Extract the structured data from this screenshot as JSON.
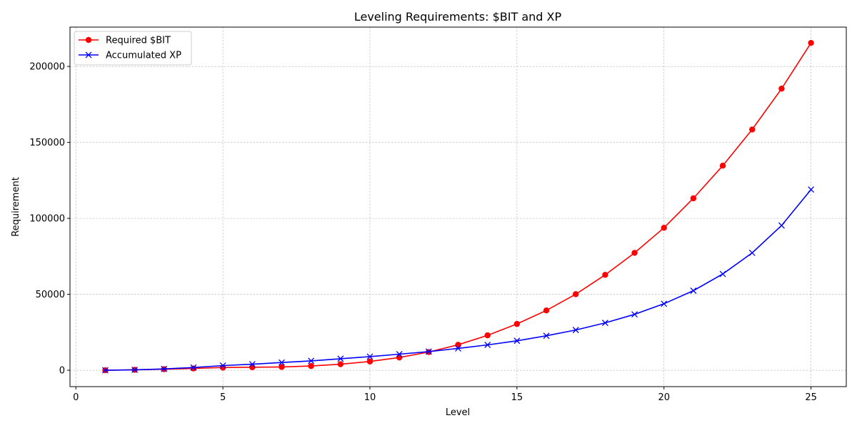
{
  "chart_data": {
    "type": "line",
    "title": "Leveling Requirements: $BIT and XP",
    "xlabel": "Level",
    "ylabel": "Requirement",
    "xlim": [
      -0.2,
      26.2
    ],
    "ylim": [
      -10765,
      225906
    ],
    "xticks": [
      0,
      5,
      10,
      15,
      20,
      25
    ],
    "yticks": [
      0,
      50000,
      100000,
      150000,
      200000
    ],
    "grid": true,
    "legend_position": "upper left",
    "x": [
      1,
      2,
      3,
      4,
      5,
      6,
      7,
      8,
      9,
      10,
      11,
      12,
      13,
      14,
      15,
      16,
      17,
      18,
      19,
      20,
      21,
      22,
      23,
      24,
      25
    ],
    "series": [
      {
        "name": "Required $BIT",
        "color": "#ff0000",
        "marker": "circle",
        "values": [
          0,
          300,
          700,
          1200,
          1800,
          2000,
          2200,
          2800,
          4000,
          5800,
          8400,
          12000,
          16800,
          23000,
          30500,
          39400,
          50100,
          62800,
          77300,
          93800,
          113200,
          134700,
          158500,
          185400,
          215500
        ]
      },
      {
        "name": "Accumulated XP",
        "color": "#0000ff",
        "marker": "x",
        "values": [
          0,
          300,
          900,
          1800,
          3100,
          4000,
          5100,
          6200,
          7600,
          9000,
          10600,
          12300,
          14400,
          16700,
          19400,
          22700,
          26500,
          31200,
          36800,
          43800,
          52400,
          63400,
          77300,
          95300,
          119000
        ]
      }
    ]
  }
}
